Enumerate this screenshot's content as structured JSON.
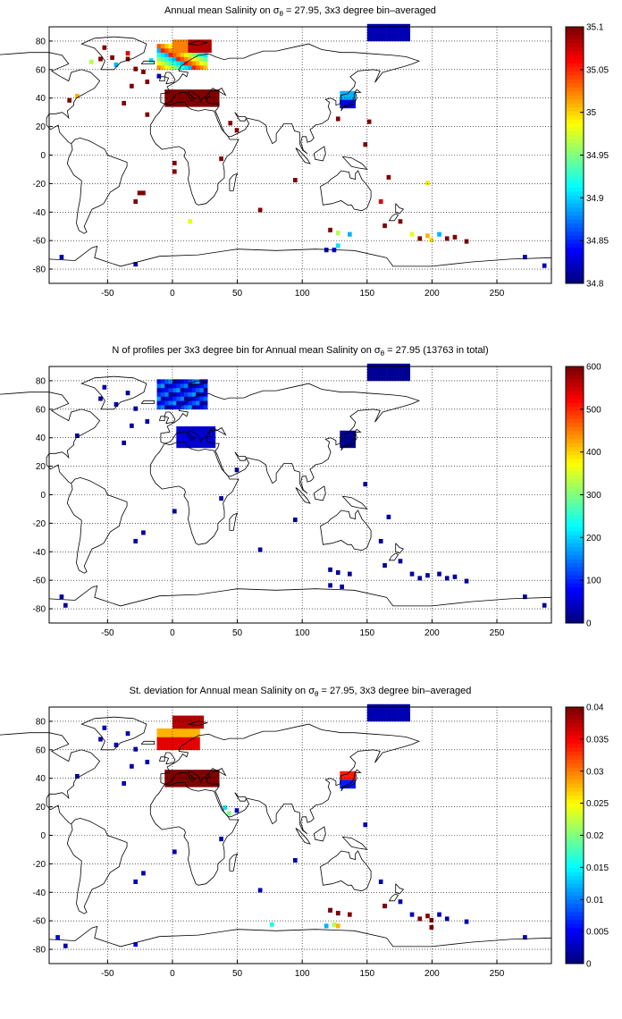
{
  "panels": [
    {
      "title_pre": "Annual mean Salinity on ",
      "title_sigma": "σ",
      "title_sub": "θ",
      "title_post": " = 27.95, 3x3 degree bin–averaged",
      "colorbar_ticks": [
        "34.8",
        "34.85",
        "34.9",
        "34.95",
        "35",
        "35.05",
        "35.1"
      ],
      "colorbar_range": [
        34.8,
        35.1
      ]
    },
    {
      "title_pre": "N of profiles per 3x3 degree bin for Annual mean Salinity on ",
      "title_sigma": "σ",
      "title_sub": "θ",
      "title_post": " = 27.95 (13763 in total)",
      "colorbar_ticks": [
        "0",
        "100",
        "200",
        "300",
        "400",
        "500",
        "600"
      ],
      "colorbar_range": [
        0,
        600
      ]
    },
    {
      "title_pre": "St. deviation for Annual mean Salinity on ",
      "title_sigma": "σ",
      "title_sub": "θ",
      "title_post": " = 27.95, 3x3 degree bin–averaged",
      "colorbar_ticks": [
        "0",
        "0.005",
        "0.01",
        "0.015",
        "0.02",
        "0.025",
        "0.03",
        "0.035",
        "0.04"
      ],
      "colorbar_range": [
        0,
        0.04
      ]
    }
  ],
  "x_ticks": [
    "-50",
    "0",
    "50",
    "100",
    "150",
    "200",
    "250"
  ],
  "y_ticks": [
    "80",
    "60",
    "40",
    "20",
    "0",
    "-20",
    "-40",
    "-60",
    "-80"
  ],
  "lon_range": [
    -95,
    292
  ],
  "lat_range": [
    -90,
    90
  ],
  "colormap": "jet",
  "grid": "dotted"
}
